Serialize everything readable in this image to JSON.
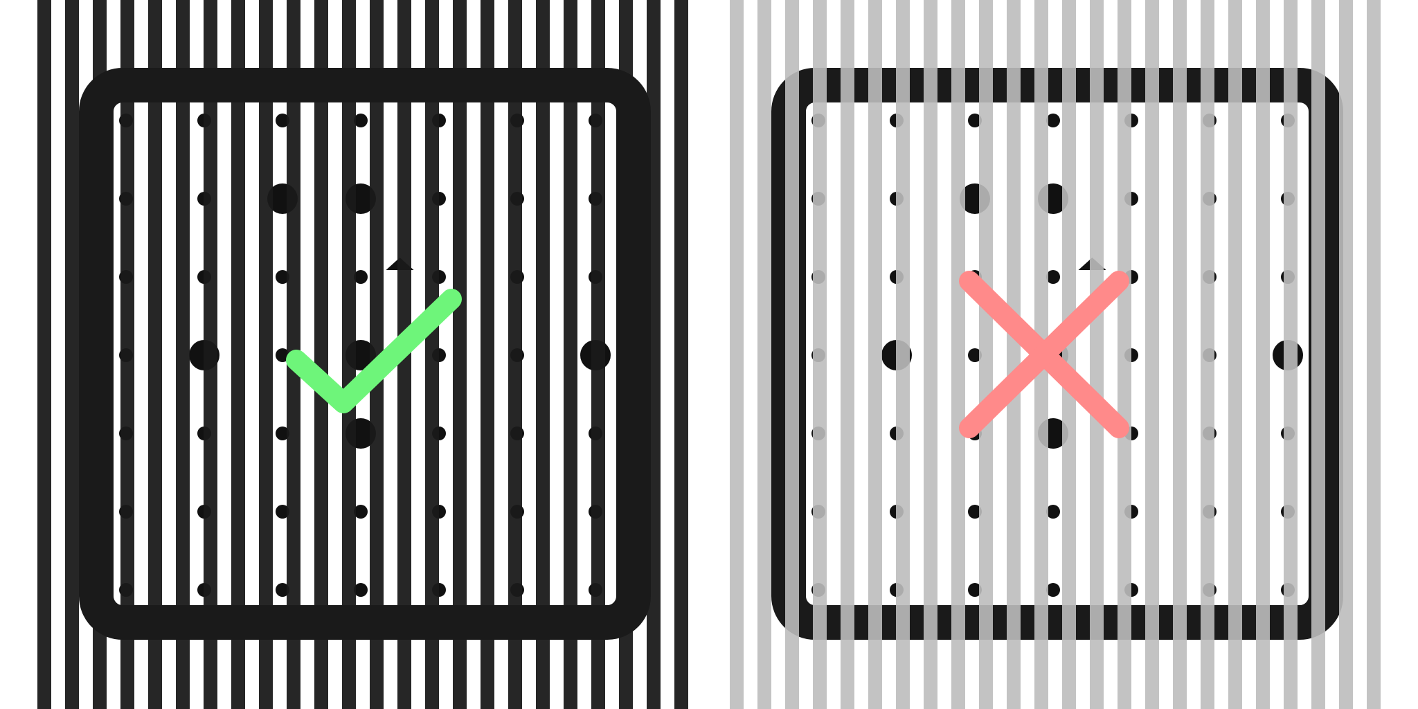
{
  "colors": {
    "background": "#ffffff",
    "frame": "#1a1a1a",
    "dot": "#111111",
    "stripes_dark": "#1a1a1a",
    "stripes_light": "#bdbdbd",
    "check": "#6ef57a",
    "cross": "#ff8a8a"
  },
  "grid": {
    "rows": 7,
    "cols": 7,
    "large_dots": [
      [
        1,
        2
      ],
      [
        1,
        3
      ],
      [
        3,
        1
      ],
      [
        3,
        3
      ],
      [
        3,
        6
      ],
      [
        4,
        3
      ]
    ],
    "marker_icon": "small-triangle-icon"
  },
  "panels": [
    {
      "id": "good",
      "stripe_style": "dark-stripes",
      "verdict_icon": "checkmark-icon",
      "verdict": "correct"
    },
    {
      "id": "bad",
      "stripe_style": "light-stripes",
      "verdict_icon": "cross-icon",
      "verdict": "incorrect"
    }
  ]
}
